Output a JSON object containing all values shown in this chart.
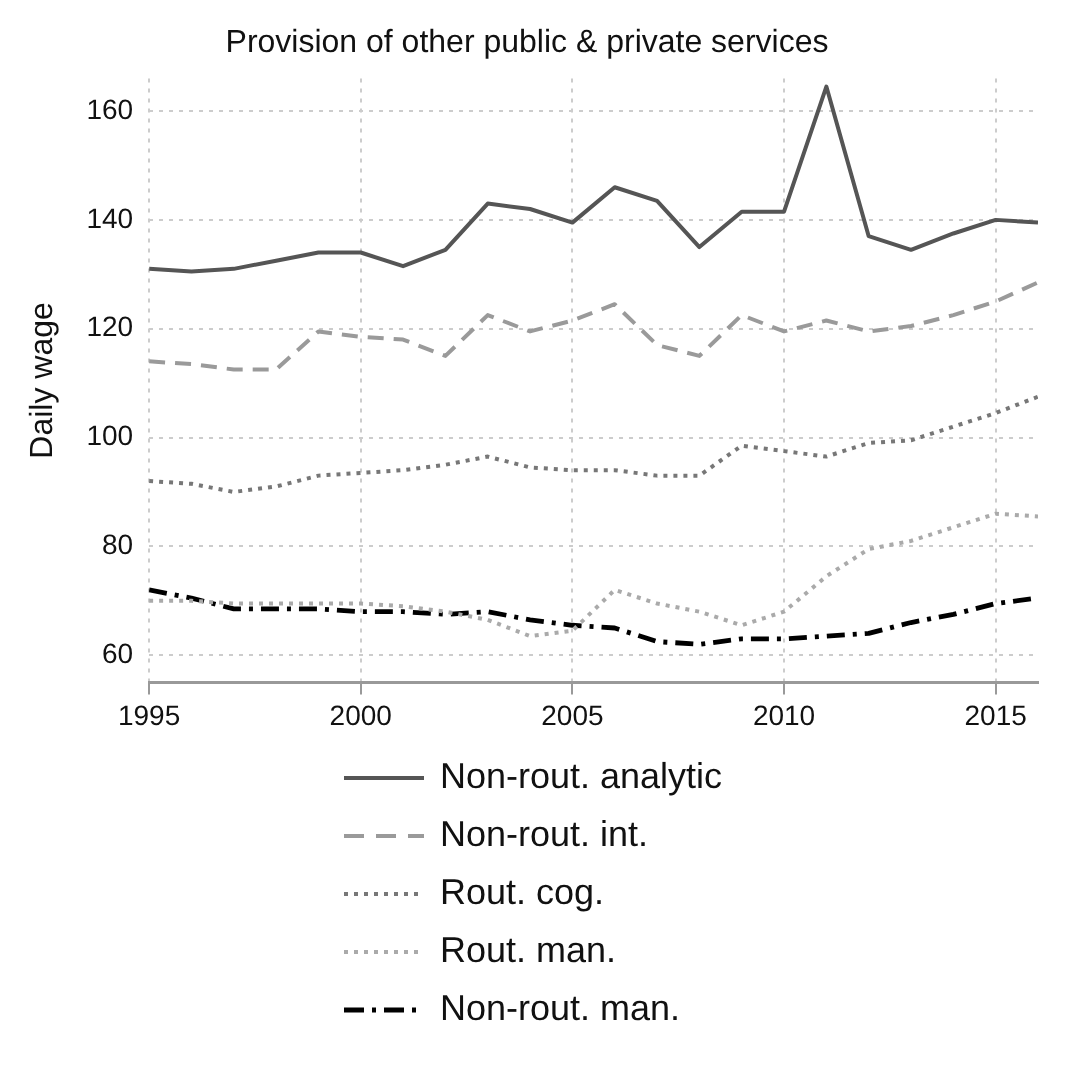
{
  "chart_data": {
    "type": "line",
    "title": "Provision of other public & private services",
    "ylabel": "Daily wage",
    "x": [
      1995,
      1996,
      1997,
      1998,
      1999,
      2000,
      2001,
      2002,
      2003,
      2004,
      2005,
      2006,
      2007,
      2008,
      2009,
      2010,
      2011,
      2012,
      2013,
      2014,
      2015,
      2016
    ],
    "xlim": [
      1995,
      2016
    ],
    "xticks": [
      1995,
      2000,
      2005,
      2010,
      2015
    ],
    "ylim": [
      55,
      166
    ],
    "yticks": [
      60,
      80,
      100,
      120,
      140,
      160
    ],
    "grid": true,
    "legend": "bottom",
    "marker": "none",
    "series": [
      {
        "name": "Non-rout. analytic",
        "color": "#555555",
        "line_style": "solid",
        "values": [
          131,
          130.5,
          131,
          132.5,
          134,
          134,
          131.5,
          134.5,
          143,
          142,
          139.5,
          146,
          143.5,
          135,
          141.5,
          141.5,
          164.5,
          137,
          134.5,
          137.5,
          140,
          139.5
        ]
      },
      {
        "name": "Non-rout. int.",
        "color": "#9a9a9a",
        "line_style": "dashed",
        "values": [
          114,
          113.5,
          112.5,
          112.5,
          119.5,
          118.5,
          118,
          115,
          122.5,
          119.5,
          121.5,
          124.5,
          117,
          115,
          122.5,
          119.5,
          121.5,
          119.5,
          120.5,
          122.5,
          125,
          128.5
        ]
      },
      {
        "name": "Rout. cog.",
        "color": "#777777",
        "line_style": "dotted",
        "values": [
          92,
          91.5,
          90,
          91,
          93,
          93.5,
          94,
          95,
          96.5,
          94.5,
          94,
          94,
          93,
          93,
          98.5,
          97.5,
          96.5,
          99,
          99.5,
          102,
          104.5,
          107.5
        ]
      },
      {
        "name": "Rout. man.",
        "color": "#aaaaaa",
        "line_style": "dotted",
        "values": [
          70,
          70,
          69.5,
          69.5,
          69.5,
          69.5,
          69,
          68,
          66.5,
          63.5,
          64.5,
          72,
          69.5,
          68,
          65.5,
          68,
          74.5,
          79.5,
          81,
          83.5,
          86,
          85.5
        ]
      },
      {
        "name": "Non-rout. man.",
        "color": "#000000",
        "line_style": "dashdot",
        "values": [
          72,
          70.5,
          68.5,
          68.5,
          68.5,
          68,
          68,
          67.5,
          68,
          66.5,
          65.5,
          65,
          62.5,
          62,
          63,
          63,
          63.5,
          64,
          66,
          67.5,
          69.5,
          70.5
        ]
      }
    ]
  }
}
